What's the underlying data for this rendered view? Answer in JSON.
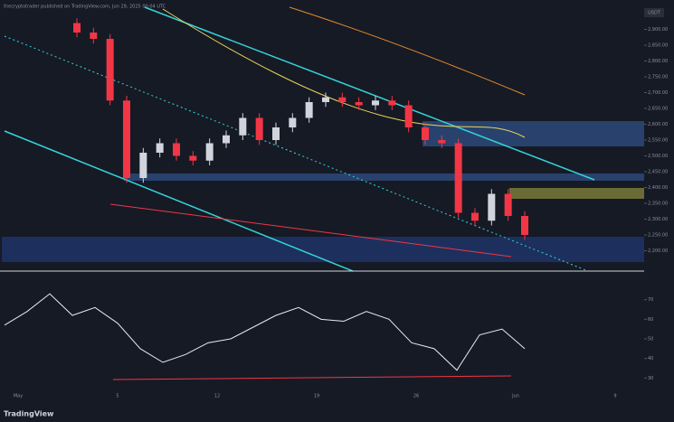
{
  "header": "thecryptotrader published on TradingView.com, Jun 29, 2025 00:04 UTC",
  "symbol_box": "USDT",
  "footer": "TradingView",
  "chart_data": {
    "type": "candlestick",
    "up_color": "#d1d4dc",
    "down_color": "#f23645",
    "open": [
      2920,
      2890,
      2870,
      2675,
      2430,
      2510,
      2540,
      2500,
      2485,
      2540,
      2565,
      2620,
      2550,
      2590,
      2620,
      2670,
      2685,
      2670,
      2660,
      2675,
      2660,
      2590,
      2550,
      2540,
      2320,
      2295,
      2380,
      2310
    ],
    "high": [
      2935,
      2905,
      2885,
      2690,
      2525,
      2555,
      2555,
      2515,
      2555,
      2580,
      2635,
      2635,
      2605,
      2635,
      2685,
      2700,
      2700,
      2685,
      2690,
      2690,
      2675,
      2605,
      2565,
      2555,
      2335,
      2395,
      2395,
      2325
    ],
    "low": [
      2875,
      2855,
      2660,
      2415,
      2415,
      2495,
      2485,
      2470,
      2470,
      2525,
      2550,
      2535,
      2535,
      2575,
      2605,
      2655,
      2655,
      2645,
      2645,
      2645,
      2575,
      2535,
      2525,
      2305,
      2280,
      2280,
      2295,
      2235
    ],
    "close": [
      2890,
      2870,
      2675,
      2430,
      2510,
      2540,
      2500,
      2485,
      2540,
      2565,
      2620,
      2550,
      2590,
      2620,
      2670,
      2685,
      2670,
      2660,
      2675,
      2660,
      2590,
      2550,
      2540,
      2320,
      2295,
      2380,
      2310,
      2250
    ],
    "ylim": [
      2150,
      2950
    ],
    "yticks": [
      {
        "value": 2200,
        "label": "2,200.00"
      },
      {
        "value": 2250,
        "label": "2,250.00"
      },
      {
        "value": 2300,
        "label": "2,300.00"
      },
      {
        "value": 2350,
        "label": "2,350.00"
      },
      {
        "value": 2400,
        "label": "2,400.00"
      },
      {
        "value": 2450,
        "label": "2,450.00"
      },
      {
        "value": 2500,
        "label": "2,500.00"
      },
      {
        "value": 2550,
        "label": "2,550.00"
      },
      {
        "value": 2600,
        "label": "2,600.00"
      },
      {
        "value": 2650,
        "label": "2,650.00"
      },
      {
        "value": 2700,
        "label": "2,700.00"
      },
      {
        "value": 2750,
        "label": "2,750.00"
      },
      {
        "value": 2800,
        "label": "2,800.00"
      },
      {
        "value": 2850,
        "label": "2,850.00"
      },
      {
        "value": 2900,
        "label": "2,900.00"
      }
    ],
    "x_labels": [
      "May",
      "5",
      "12",
      "19",
      "26",
      "Jun",
      "9"
    ],
    "rsi": {
      "color": "#e8eaf0",
      "values": [
        57,
        64,
        73,
        62,
        66,
        58,
        45,
        38,
        42,
        48,
        50,
        56,
        62,
        66,
        60,
        59,
        64,
        60,
        48,
        45,
        34,
        52,
        55,
        45
      ],
      "ylim": [
        20,
        80
      ],
      "yticks": [
        30,
        40,
        50,
        60,
        70
      ]
    }
  }
}
